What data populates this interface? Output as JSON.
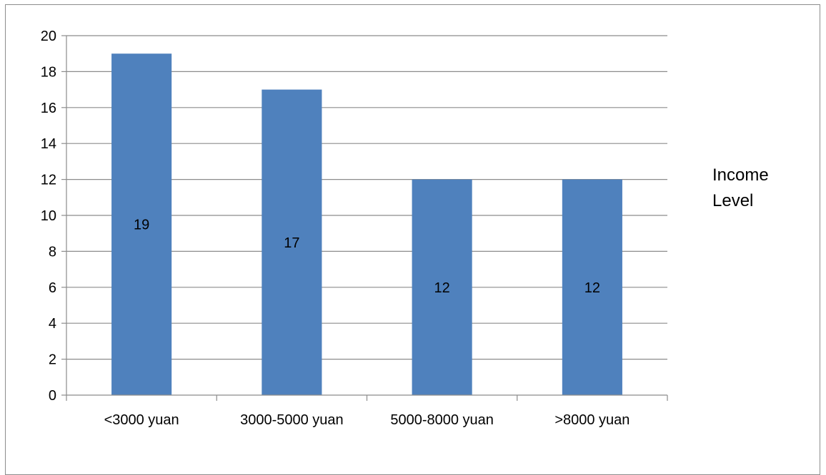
{
  "chart_data": {
    "type": "bar",
    "categories": [
      "<3000 yuan",
      "3000-5000 yuan",
      "5000-8000 yuan",
      ">8000 yuan"
    ],
    "series": [
      {
        "name": "Income Level",
        "values": [
          19,
          17,
          12,
          12
        ],
        "color": "#4f81bd"
      }
    ],
    "title": "",
    "xlabel": "",
    "ylabel": "",
    "ylim": [
      0,
      20
    ],
    "yticks": [
      0,
      2,
      4,
      6,
      8,
      10,
      12,
      14,
      16,
      18,
      20
    ],
    "grid": true,
    "data_labels": true,
    "legend": {
      "position": "right",
      "entries": [
        "Income",
        "Level"
      ]
    }
  }
}
